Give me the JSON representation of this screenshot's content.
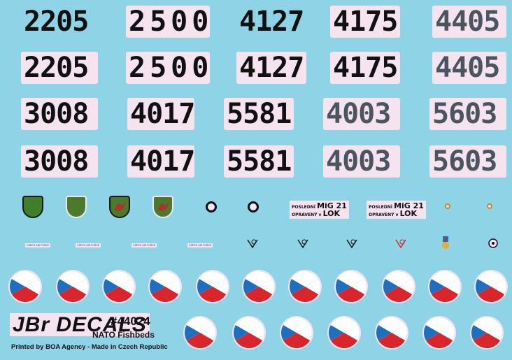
{
  "decals": {
    "numbers": {
      "row1": [
        "2205",
        "2500",
        "4127",
        "4175",
        "4405"
      ],
      "row2": [
        "2205",
        "2500",
        "4127",
        "4175",
        "4405"
      ],
      "row3": [
        "3008",
        "4017",
        "5581",
        "4003",
        "5603"
      ],
      "row4": [
        "3008",
        "4017",
        "5581",
        "4003",
        "5603"
      ]
    },
    "small_labels": {
      "czech_air_force": "CZECH AIR FORCE",
      "posledni": "POSLEDNÍ",
      "mig": "MiG 21",
      "opraveny": "OPRAVENÝ v",
      "lok": "LOK"
    },
    "colors": {
      "background": "#8fd3e6",
      "white_backing": "#f5e3ef",
      "black": "#111111",
      "dark_grey": "#4b5560",
      "roundel_blue": "#1f6fc0",
      "roundel_red": "#d9262d",
      "roundel_white": "#ffffff",
      "shield_green": "#3f7f2a",
      "shield_olive": "#4b7a2c"
    }
  },
  "branding": {
    "logo_text": "JBr DECALS",
    "catalog_number": "#44024",
    "product_name": "NATO Fishbeds",
    "printer_line": "Printed by BOA Agency - Made in Czech Republic"
  }
}
